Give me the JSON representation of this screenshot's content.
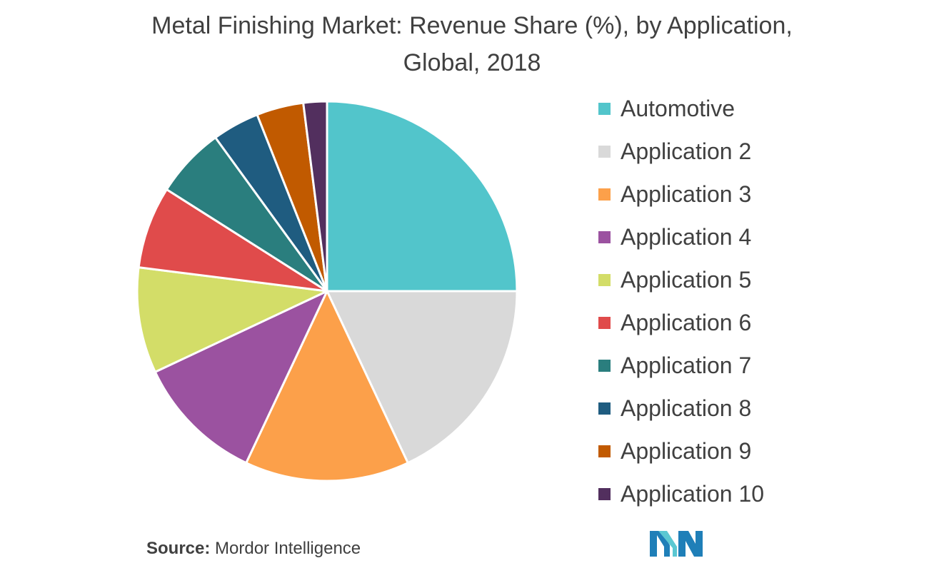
{
  "chart_data": {
    "type": "pie",
    "title_line1": "Metal Finishing Market: Revenue Share (%), by Application,",
    "title_line2": "Global, 2018",
    "legend_position": "right",
    "slices": [
      {
        "label": "Automotive",
        "value": 25,
        "color": "#52C5CB"
      },
      {
        "label": "Application 2",
        "value": 18,
        "color": "#D9D9D9"
      },
      {
        "label": "Application 3",
        "value": 14,
        "color": "#FCA04A"
      },
      {
        "label": "Application 4",
        "value": 11,
        "color": "#9B52A0"
      },
      {
        "label": "Application 5",
        "value": 9,
        "color": "#D3DD68"
      },
      {
        "label": "Application 6",
        "value": 7,
        "color": "#E04B4B"
      },
      {
        "label": "Application 7",
        "value": 6,
        "color": "#2A7E7E"
      },
      {
        "label": "Application 8",
        "value": 4,
        "color": "#1F5C80"
      },
      {
        "label": "Application 9",
        "value": 4,
        "color": "#C15A00"
      },
      {
        "label": "Application 10",
        "value": 2,
        "color": "#522F5E"
      }
    ]
  },
  "source": {
    "label": "Source:",
    "text": " Mordor Intelligence"
  },
  "logo": {
    "icon": "mordor-intelligence-logo-icon",
    "color_dark": "#1F7FB8",
    "color_light": "#5BC8D2"
  }
}
